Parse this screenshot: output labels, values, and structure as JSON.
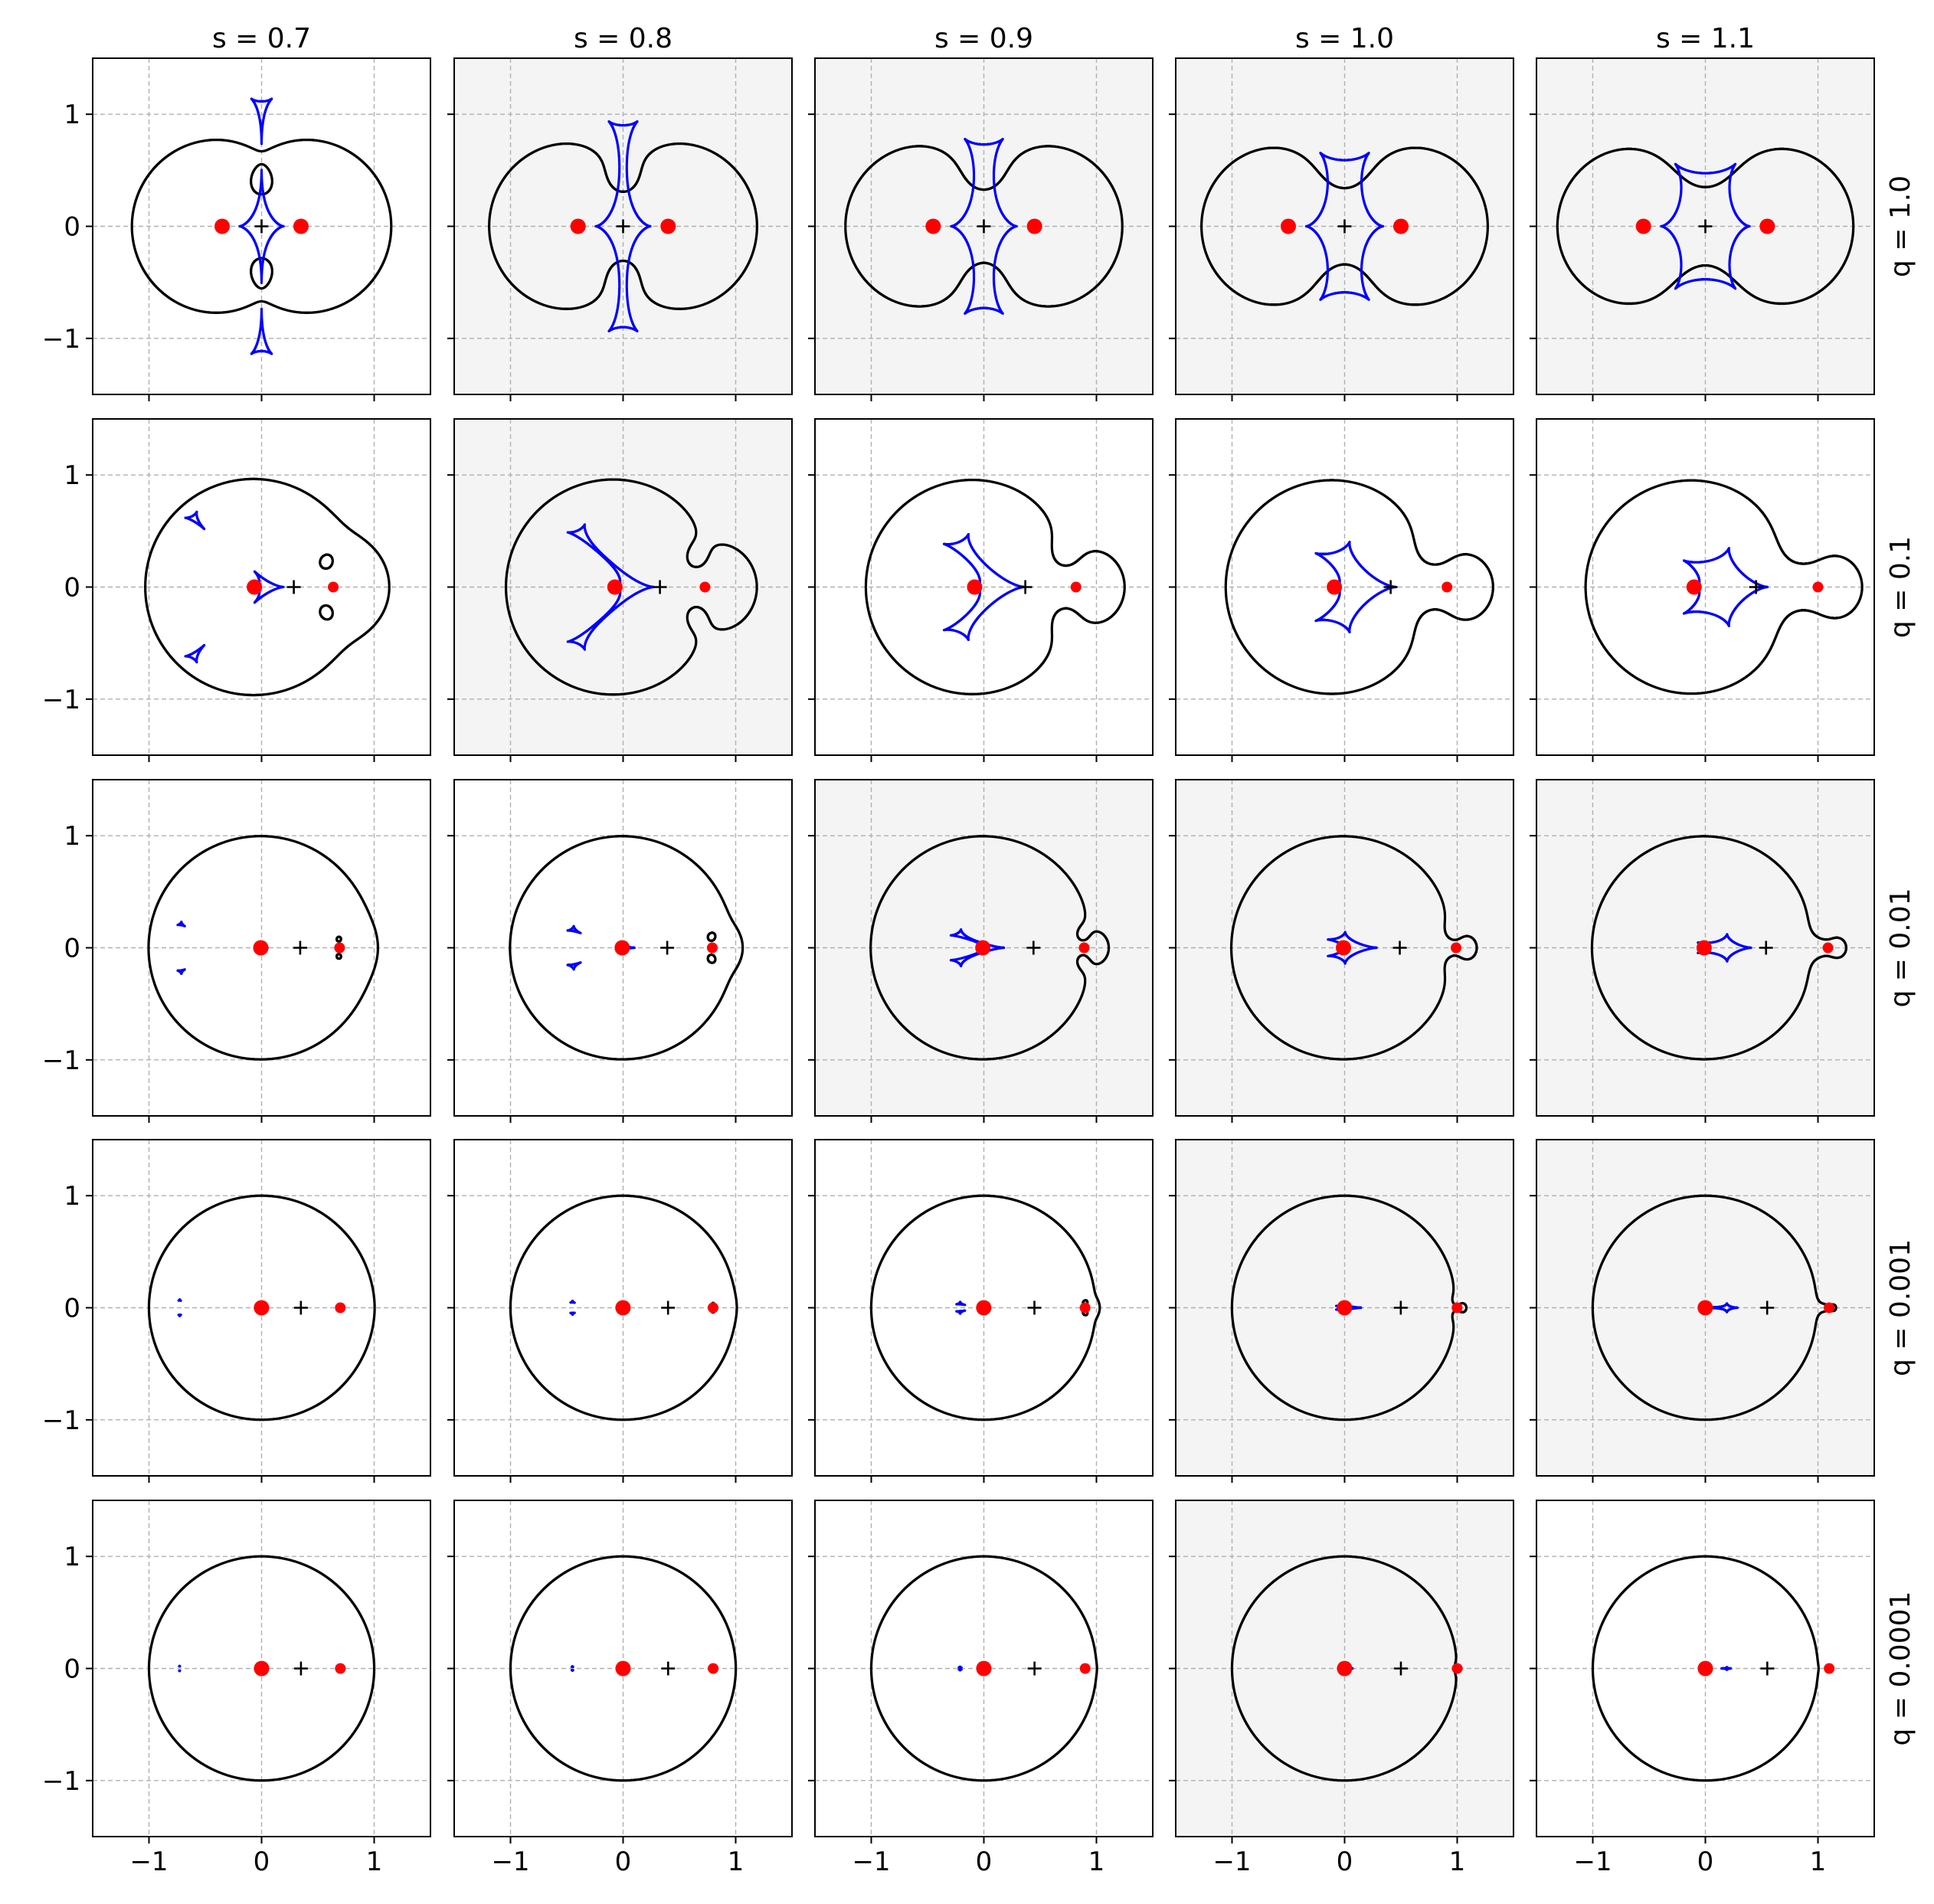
{
  "chart_data": {
    "type": "scatter",
    "layout": "grid",
    "columns": [
      "s = 0.7",
      "s = 0.8",
      "s = 0.9",
      "s = 1.0",
      "s = 1.1"
    ],
    "rows": [
      "q = 1.0",
      "q = 0.1",
      "q = 0.01",
      "q = 0.001",
      "q = 0.0001"
    ],
    "s_values": [
      0.7,
      0.8,
      0.9,
      1.0,
      1.1
    ],
    "q_values": [
      1.0,
      0.1,
      0.01,
      0.001,
      0.0001
    ],
    "xlim": [
      -1.5,
      1.5
    ],
    "ylim": [
      -1.5,
      1.5
    ],
    "xticks": [
      -1,
      0,
      1
    ],
    "yticks": [
      -1,
      0,
      1
    ],
    "xtick_labels": [
      "−1",
      "0",
      "1"
    ],
    "ytick_labels": [
      "−1",
      "0",
      "1"
    ],
    "grid": true,
    "shaded_panels": [
      [
        0,
        1
      ],
      [
        0,
        2
      ],
      [
        0,
        3
      ],
      [
        0,
        4
      ],
      [
        1,
        1
      ],
      [
        2,
        2
      ],
      [
        2,
        3
      ],
      [
        2,
        4
      ],
      [
        3,
        3
      ],
      [
        3,
        4
      ],
      [
        4,
        3
      ]
    ],
    "series": [
      {
        "kind": "critical-curve",
        "color": "#000000"
      },
      {
        "kind": "caustic",
        "color": "#0000ff"
      },
      {
        "kind": "lens-positions",
        "color": "#ff0000"
      },
      {
        "kind": "center-of-mass",
        "marker": "+",
        "color": "#000000"
      }
    ],
    "colors": {
      "critical": "#000000",
      "caustic": "#0000ff",
      "lens": "#ff0000",
      "panel_bg": "#ffffff",
      "shaded_bg": "#f4f4f4",
      "grid": "#b0b0b0"
    }
  }
}
